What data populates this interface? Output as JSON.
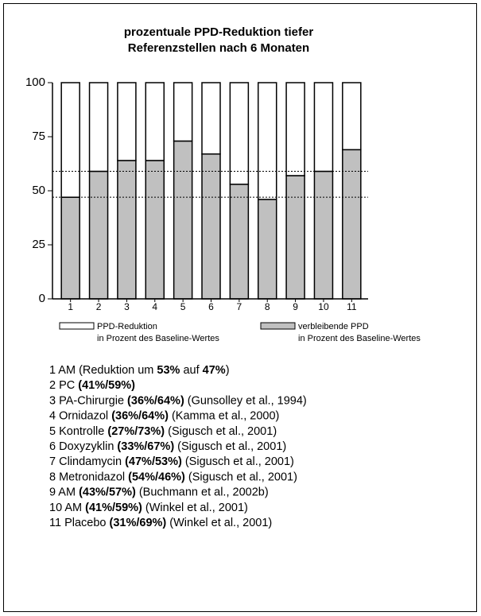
{
  "chart_data": {
    "type": "stacked_bar",
    "title": [
      "prozentuale PPD-Reduktion tiefer",
      "Referenzstellen nach 6 Monaten"
    ],
    "categories": [
      "1",
      "2",
      "3",
      "4",
      "5",
      "6",
      "7",
      "8",
      "9",
      "10",
      "11"
    ],
    "series": [
      {
        "name": "verbleibende PPD",
        "description": "in Prozent des Baseline-Wertes",
        "color": "#c0c0c0",
        "values": [
          47,
          59,
          64,
          64,
          73,
          67,
          53,
          46,
          57,
          59,
          69
        ]
      },
      {
        "name": "PPD-Reduktion",
        "description": "in Prozent des Baseline-Wertes",
        "color": "#ffffff",
        "values": [
          53,
          41,
          36,
          36,
          27,
          33,
          47,
          54,
          43,
          41,
          31
        ]
      }
    ],
    "ylim": [
      0,
      100
    ],
    "yticks": [
      0,
      25,
      50,
      75,
      100
    ],
    "reference_lines": [
      47,
      59
    ],
    "notes": [
      [
        {
          "text": "1 AM (Reduktion um "
        },
        {
          "text": "53%",
          "bold": true
        },
        {
          "text": " auf "
        },
        {
          "text": "47%",
          "bold": true
        },
        {
          "text": ")"
        }
      ],
      [
        {
          "text": "2 PC "
        },
        {
          "text": "(41%/59%)",
          "bold": true
        }
      ],
      [
        {
          "text": "3 PA-Chirurgie "
        },
        {
          "text": "(36%/64%)",
          "bold": true
        },
        {
          "text": " (Gunsolley et al., 1994)"
        }
      ],
      [
        {
          "text": "4 Ornidazol "
        },
        {
          "text": "(36%/64%)",
          "bold": true
        },
        {
          "text": " (Kamma et al., 2000)"
        }
      ],
      [
        {
          "text": "5 Kontrolle "
        },
        {
          "text": "(27%/73%)",
          "bold": true
        },
        {
          "text": " (Sigusch et al., 2001)"
        }
      ],
      [
        {
          "text": "6 Doxyzyklin "
        },
        {
          "text": "(33%/67%)",
          "bold": true
        },
        {
          "text": " (Sigusch et al., 2001)"
        }
      ],
      [
        {
          "text": "7 Clindamycin "
        },
        {
          "text": "(47%/53%)",
          "bold": true
        },
        {
          "text": " (Sigusch et al., 2001)"
        }
      ],
      [
        {
          "text": "8 Metronidazol "
        },
        {
          "text": "(54%/46%)",
          "bold": true
        },
        {
          "text": " (Sigusch et al., 2001)"
        }
      ],
      [
        {
          "text": "9 AM "
        },
        {
          "text": "(43%/57%)",
          "bold": true
        },
        {
          "text": " (Buchmann et al., 2002b)"
        }
      ],
      [
        {
          "text": "10 AM "
        },
        {
          "text": "(41%/59%)",
          "bold": true
        },
        {
          "text": " (Winkel et al., 2001)"
        }
      ],
      [
        {
          "text": "11 Placebo "
        },
        {
          "text": "(31%/69%)",
          "bold": true
        },
        {
          "text": " (Winkel et al., 2001)"
        }
      ]
    ]
  }
}
